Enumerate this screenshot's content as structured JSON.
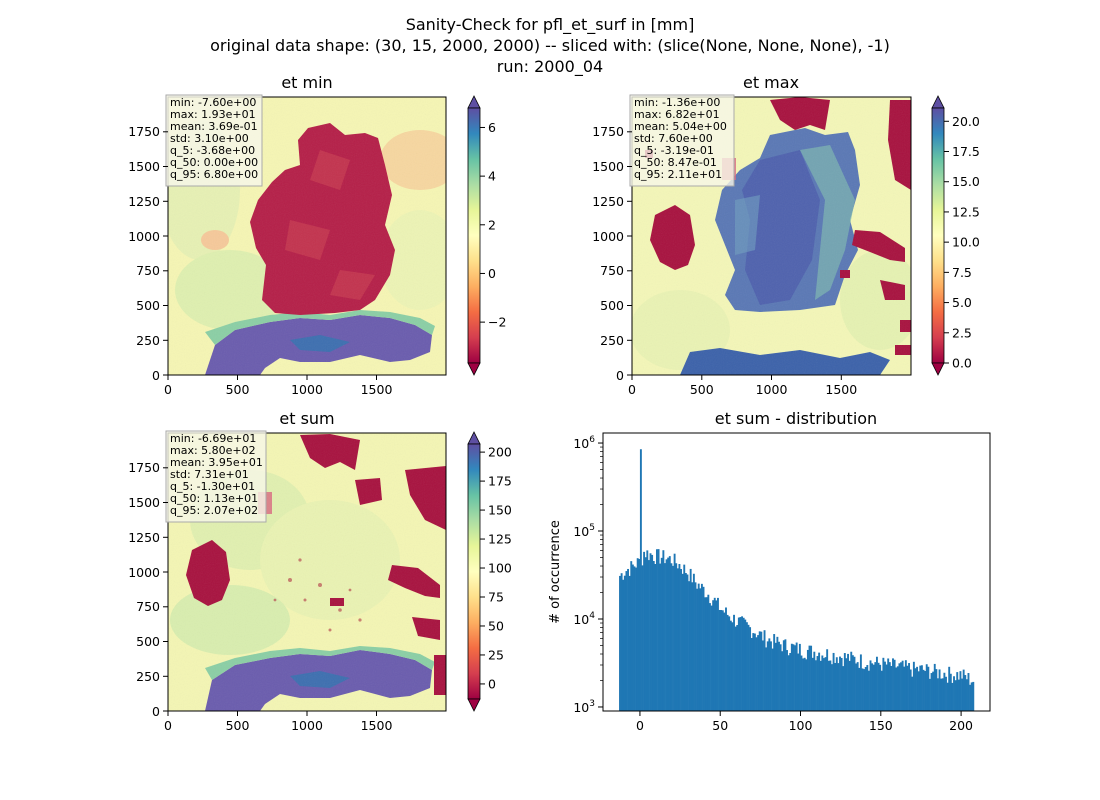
{
  "figure": {
    "title_lines": [
      "Sanity-Check for pfl_et_surf in [mm]",
      "original data shape: (30, 15, 2000, 2000) -- sliced with: (slice(None, None, None), -1)",
      "run: 2000_04"
    ]
  },
  "chart_data": [
    {
      "type": "heatmap",
      "title": "et min",
      "colormap": "Spectral",
      "x_ticks": [
        "0",
        "500",
        "1000",
        "1500"
      ],
      "y_ticks": [
        "0",
        "250",
        "500",
        "750",
        "1000",
        "1250",
        "1500",
        "1750"
      ],
      "xlim": [
        0,
        2000
      ],
      "ylim": [
        0,
        2000
      ],
      "colorbar": {
        "ticks": [
          "−2",
          "0",
          "2",
          "4",
          "6"
        ],
        "tick_values": [
          -2,
          0,
          2,
          4,
          6
        ],
        "range": [
          -3.68,
          6.8
        ],
        "extend": "both"
      },
      "stats": [
        "min: -7.60e+00",
        "max: 1.93e+01",
        "mean: 3.69e-01",
        "std: 3.10e+00",
        "q_5: -3.68e+00",
        "q_50: 0.00e+00",
        "q_95: 6.80e+00"
      ],
      "colors": {
        "land": "#b51f48",
        "background": "#f7f7b0",
        "alps": "#6a5cae"
      }
    },
    {
      "type": "heatmap",
      "title": "et max",
      "colormap": "Spectral",
      "x_ticks": [
        "0",
        "500",
        "1000",
        "1500"
      ],
      "y_ticks": [
        "0",
        "250",
        "500",
        "750",
        "1000",
        "1250",
        "1500",
        "1750"
      ],
      "xlim": [
        0,
        2000
      ],
      "ylim": [
        0,
        2000
      ],
      "colorbar": {
        "ticks": [
          "0.0",
          "2.5",
          "5.0",
          "7.5",
          "10.0",
          "12.5",
          "15.0",
          "17.5",
          "20.0"
        ],
        "tick_values": [
          0,
          2.5,
          5,
          7.5,
          10,
          12.5,
          15,
          17.5,
          20
        ],
        "range": [
          0,
          21.1
        ],
        "extend": "both"
      },
      "stats": [
        "min: -1.36e+00",
        "max: 6.82e+01",
        "mean: 5.04e+00",
        "std: 7.60e+00",
        "q_5: -3.19e-01",
        "q_50: 8.47e-01",
        "q_95: 2.11e+01"
      ],
      "colors": {
        "land": "#5a78b5",
        "background": "#f5f8b8",
        "patch": "#a8123f"
      }
    },
    {
      "type": "heatmap",
      "title": "et sum",
      "colormap": "Spectral",
      "x_ticks": [
        "0",
        "500",
        "1000",
        "1500"
      ],
      "y_ticks": [
        "0",
        "250",
        "500",
        "750",
        "1000",
        "1250",
        "1500",
        "1750"
      ],
      "xlim": [
        0,
        2000
      ],
      "ylim": [
        0,
        2000
      ],
      "colorbar": {
        "ticks": [
          "0",
          "25",
          "50",
          "75",
          "100",
          "125",
          "150",
          "175",
          "200"
        ],
        "tick_values": [
          0,
          25,
          50,
          75,
          100,
          125,
          150,
          175,
          200
        ],
        "range": [
          -13,
          207
        ],
        "extend": "both"
      },
      "stats": [
        "min: -6.69e+01",
        "max: 5.80e+02",
        "mean: 3.95e+01",
        "std: 7.31e+01",
        "q_5: -1.30e+01",
        "q_50: 1.13e+01",
        "q_95: 2.07e+02"
      ],
      "colors": {
        "land": "#eef3b2",
        "background": "#f7f7b0",
        "patch": "#a8123f",
        "alps": "#6a5cae"
      }
    },
    {
      "type": "bar",
      "title": "et sum - distribution",
      "ylabel": "# of occurrence",
      "yscale": "log",
      "ylim": [
        900,
        1300000
      ],
      "xlim": [
        -23,
        218
      ],
      "x_ticks": [
        0,
        50,
        100,
        150,
        200
      ],
      "y_ticks": [
        {
          "value": 1000,
          "label": "10",
          "exp": "3"
        },
        {
          "value": 10000,
          "label": "10",
          "exp": "4"
        },
        {
          "value": 100000,
          "label": "10",
          "exp": "5"
        },
        {
          "value": 1000000,
          "label": "10",
          "exp": "6"
        }
      ],
      "color": "#1f77b4",
      "bins": {
        "start": -13,
        "width": 1
      },
      "x": [
        -13,
        -10,
        -5,
        -1,
        0,
        1,
        2,
        5,
        10,
        15,
        20,
        25,
        30,
        35,
        40,
        45,
        50,
        55,
        60,
        65,
        70,
        75,
        80,
        90,
        100,
        110,
        120,
        130,
        140,
        150,
        160,
        170,
        180,
        190,
        200,
        207
      ],
      "counts": [
        31000,
        35000,
        40000,
        45000,
        850000,
        50000,
        58000,
        55000,
        52000,
        50000,
        47000,
        40000,
        33000,
        25000,
        21000,
        17000,
        13000,
        11000,
        9500,
        8500,
        7500,
        6500,
        5800,
        5000,
        4500,
        4200,
        3900,
        3600,
        3300,
        3100,
        2900,
        2700,
        2600,
        2400,
        2300,
        2000
      ]
    }
  ]
}
